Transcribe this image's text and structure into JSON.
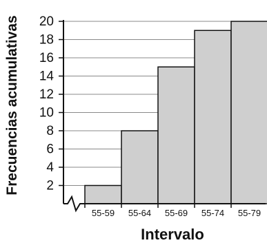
{
  "chart_data": {
    "type": "bar",
    "title": "",
    "xlabel": "Intervalo",
    "ylabel": "Frecuencias acumulativas",
    "categories": [
      "55-59",
      "55-64",
      "55-69",
      "55-74",
      "55-79"
    ],
    "values": [
      2,
      8,
      15,
      19,
      20
    ],
    "ylim": [
      0,
      20
    ],
    "yticks": [
      "2",
      "4",
      "6",
      "8",
      "10",
      "12",
      "14",
      "16",
      "18",
      "20"
    ],
    "grid": true,
    "axis_break": true,
    "colors": {
      "bar_fill": "#cfcfcf",
      "bar_stroke": "#111111",
      "grid": "#888888",
      "axis": "#111111"
    }
  }
}
